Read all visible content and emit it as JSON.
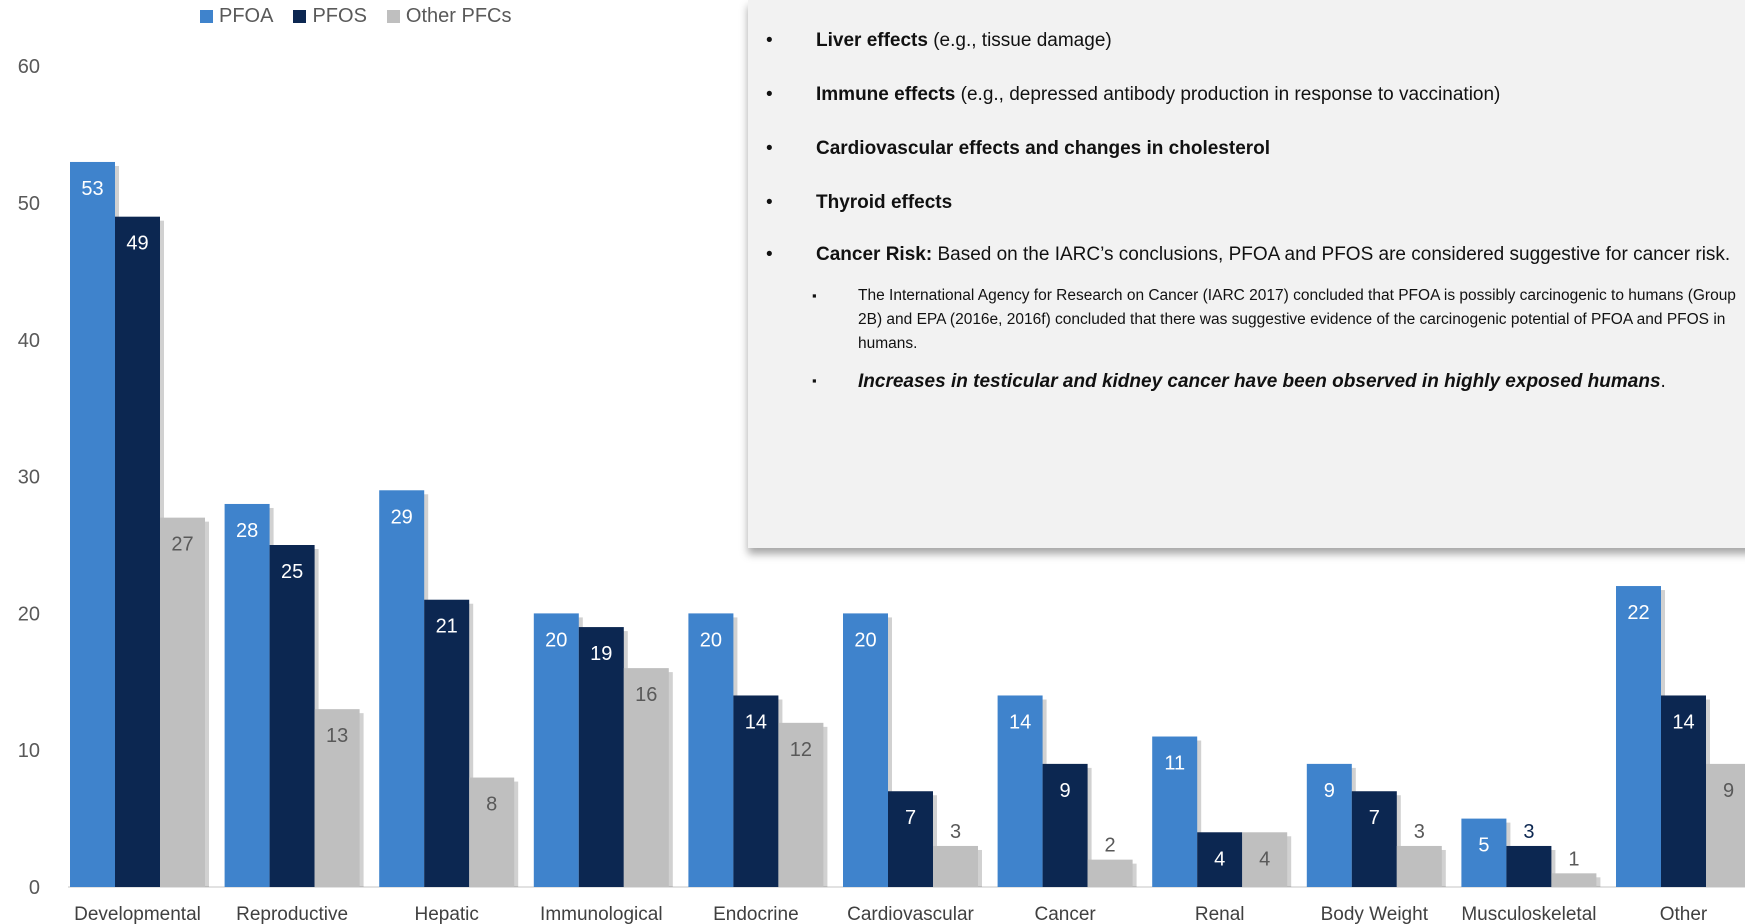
{
  "chart_data": {
    "type": "bar",
    "categories": [
      "Developmental",
      "Reproductive",
      "Hepatic",
      "Immunological",
      "Endocrine",
      "Cardiovascular",
      "Cancer",
      "Renal",
      "Body Weight",
      "Musculoskeletal",
      "Other"
    ],
    "series": [
      {
        "name": "PFOA",
        "values": [
          53,
          28,
          29,
          20,
          20,
          20,
          14,
          11,
          9,
          5,
          22
        ]
      },
      {
        "name": "PFOS",
        "values": [
          49,
          25,
          21,
          19,
          14,
          7,
          9,
          4,
          7,
          3,
          14
        ]
      },
      {
        "name": "Other PFCs",
        "values": [
          27,
          13,
          8,
          16,
          12,
          3,
          2,
          4,
          3,
          1,
          9
        ]
      }
    ],
    "ylim": [
      0,
      60
    ],
    "yticks": [
      0,
      10,
      20,
      30,
      40,
      50,
      60
    ],
    "colors": {
      "PFOA": "#3f83cc",
      "PFOS": "#0c2751",
      "Other PFCs": "#bfbfbf"
    },
    "label_colors": {
      "PFOA": "#ffffff",
      "PFOS": "#ffffff",
      "Other PFCs": "#595959"
    },
    "legend_position": "top-left",
    "grid": false
  },
  "callout": {
    "bullets": [
      {
        "bold": "Liver effects",
        "rest": " (e.g., tissue damage)"
      },
      {
        "bold": "Immune effects",
        "rest": " (e.g., depressed antibody production in response to vaccination)"
      },
      {
        "bold": "Cardiovascular effects and changes in cholesterol",
        "rest": ""
      },
      {
        "bold": "Thyroid effects",
        "rest": ""
      },
      {
        "bold": "Cancer Risk:",
        "rest": " Based on the IARC’s conclusions, PFOA and PFOS are considered suggestive for cancer risk."
      }
    ],
    "bullet_marker": "•",
    "sub_marker": "▪",
    "sub_note": "The International Agency for Research on Cancer (IARC 2017) concluded that PFOA is possibly carcinogenic to humans (Group 2B) and EPA (2016e, 2016f) concluded that there was suggestive evidence of the carcinogenic potential of PFOA and PFOS in humans.",
    "sub_bold": "Increases in testicular and kidney cancer have been observed in highly exposed humans",
    "sub_bold_tail": "."
  }
}
